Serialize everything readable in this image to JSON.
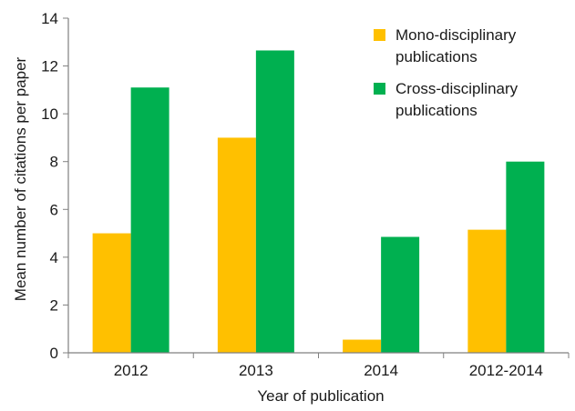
{
  "chart_data": {
    "type": "bar",
    "title": "",
    "xlabel": "Year of publication",
    "ylabel": "Mean number of citations per paper",
    "ylim": [
      0,
      14
    ],
    "yticks": [
      0,
      2,
      4,
      6,
      8,
      10,
      12,
      14
    ],
    "grid": false,
    "legend_position": "top-right",
    "categories": [
      "2012",
      "2013",
      "2014",
      "2012-2014"
    ],
    "series": [
      {
        "name": "Mono-disciplinary publications",
        "legend_lines": [
          "Mono-disciplinary",
          "publications"
        ],
        "color": "#ffc000",
        "values": [
          5.0,
          9.0,
          0.55,
          5.15
        ]
      },
      {
        "name": "Cross-disciplinary publications",
        "legend_lines": [
          "Cross-disciplinary",
          "publications"
        ],
        "color": "#00b050",
        "values": [
          11.1,
          12.65,
          4.85,
          8.0
        ]
      }
    ]
  }
}
